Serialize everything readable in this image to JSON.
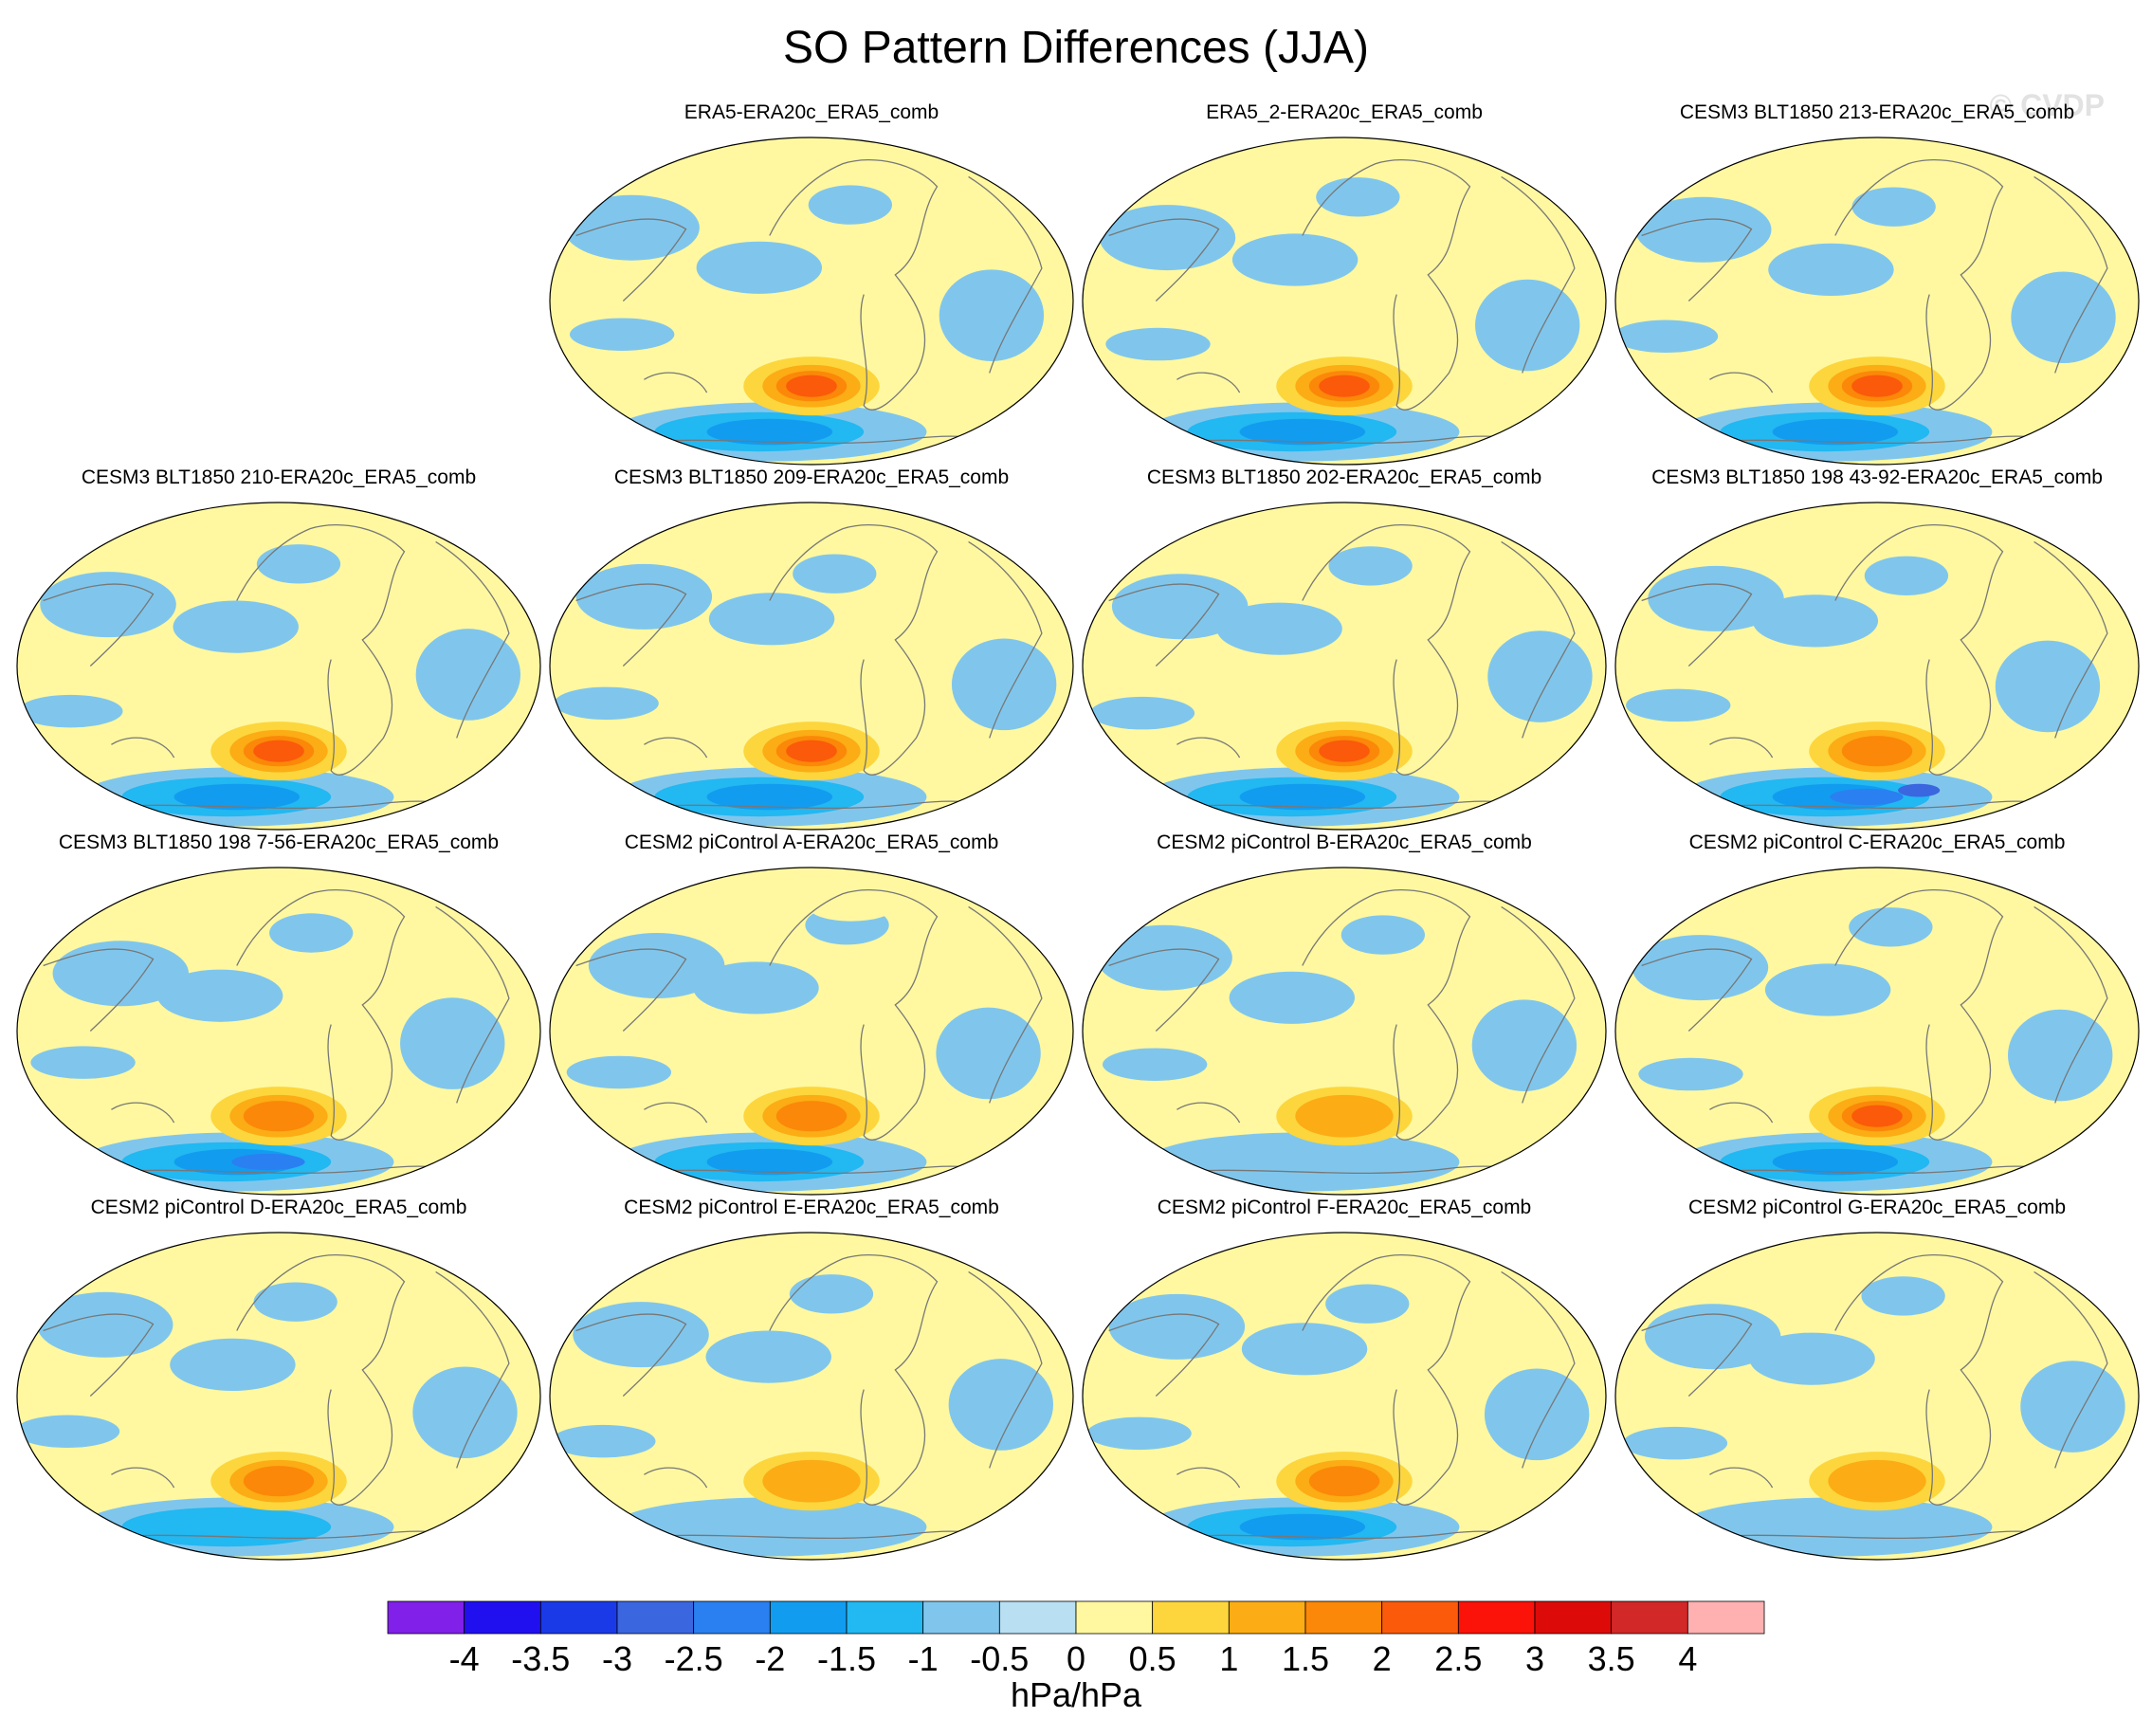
{
  "chart_data": {
    "type": "heatmap",
    "title": "SO Pattern Differences (JJA)",
    "watermark": "© CVDP",
    "colorbar": {
      "unit": "hPa/hPa",
      "ticks": [
        "-4",
        "-3.5",
        "-3",
        "-2.5",
        "-2",
        "-1.5",
        "-1",
        "-0.5",
        "0",
        "0.5",
        "1",
        "1.5",
        "2",
        "2.5",
        "3",
        "3.5",
        "4"
      ],
      "colors": [
        "#8020e8",
        "#2010f0",
        "#1a3ae8",
        "#3a66e0",
        "#2a80f0",
        "#129cf0",
        "#22b8f2",
        "#80c6ec",
        "#b8dff2",
        "#fff8a0",
        "#fcd63c",
        "#fcac14",
        "#fb8808",
        "#fb5a0a",
        "#fb1208",
        "#dd0a0a",
        "#d22828",
        "#ffb0b0"
      ],
      "range": [
        -4,
        4
      ],
      "interval": 0.5
    },
    "panels": [
      {
        "label": "ERA5-ERA20c_ERA5_comb",
        "so_center_max": 2.0,
        "antarctic_min": -1.5
      },
      {
        "label": "ERA5_2-ERA20c_ERA5_comb",
        "so_center_max": 2.0,
        "antarctic_min": -1.5
      },
      {
        "label": "CESM3 BLT1850 213-ERA20c_ERA5_comb",
        "so_center_max": 2.0,
        "antarctic_min": -1.5
      },
      {
        "label": "CESM3 BLT1850 210-ERA20c_ERA5_comb",
        "so_center_max": 2.0,
        "antarctic_min": -1.5
      },
      {
        "label": "CESM3 BLT1850 209-ERA20c_ERA5_comb",
        "so_center_max": 2.0,
        "antarctic_min": -1.5
      },
      {
        "label": "CESM3 BLT1850 202-ERA20c_ERA5_comb",
        "so_center_max": 2.0,
        "antarctic_min": -1.5
      },
      {
        "label": "CESM3 BLT1850 198 43-92-ERA20c_ERA5_comb",
        "so_center_max": 1.5,
        "antarctic_min": -2.5
      },
      {
        "label": "CESM3 BLT1850 198 7-56-ERA20c_ERA5_comb",
        "so_center_max": 1.5,
        "antarctic_min": -2.0
      },
      {
        "label": "CESM2 piControl A-ERA20c_ERA5_comb",
        "so_center_max": 1.5,
        "antarctic_min": -1.5
      },
      {
        "label": "CESM2 piControl B-ERA20c_ERA5_comb",
        "so_center_max": 1.0,
        "antarctic_min": -0.5
      },
      {
        "label": "CESM2 piControl C-ERA20c_ERA5_comb",
        "so_center_max": 2.0,
        "antarctic_min": -1.5
      },
      {
        "label": "CESM2 piControl D-ERA20c_ERA5_comb",
        "so_center_max": 1.5,
        "antarctic_min": -1.0
      },
      {
        "label": "CESM2 piControl E-ERA20c_ERA5_comb",
        "so_center_max": 1.0,
        "antarctic_min": -0.5
      },
      {
        "label": "CESM2 piControl F-ERA20c_ERA5_comb",
        "so_center_max": 1.5,
        "antarctic_min": -1.5
      },
      {
        "label": "CESM2 piControl G-ERA20c_ERA5_comb",
        "so_center_max": 1.0,
        "antarctic_min": -0.5
      }
    ]
  }
}
